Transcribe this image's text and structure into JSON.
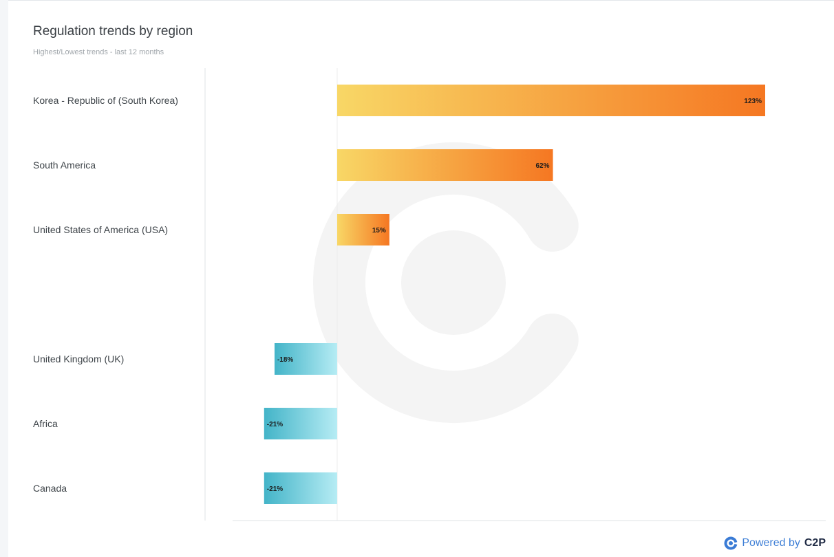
{
  "header": {
    "title": "Regulation trends by region",
    "subtitle": "Highest/Lowest trends - last 12 months"
  },
  "footer": {
    "powered_label": "Powered by",
    "brand": "C2P",
    "brand_icon": "c2p-logo-icon"
  },
  "colors": {
    "positive_start": "#f8d766",
    "positive_end": "#f57722",
    "negative_start": "#b6ecf4",
    "negative_end": "#43b4c8",
    "watermark": "#f4f4f4"
  },
  "chart_data": {
    "type": "bar",
    "orientation": "horizontal",
    "title": "Regulation trends by region",
    "subtitle": "Highest/Lowest trends - last 12 months",
    "categories": [
      "Korea - Republic of (South Korea)",
      "South America",
      "United States of America (USA)",
      "",
      "United Kingdom (UK)",
      "Africa",
      "Canada"
    ],
    "values": [
      123,
      62,
      15,
      null,
      -18,
      -21,
      -21
    ],
    "value_labels": [
      "123%",
      "62%",
      "15%",
      "",
      "-18%",
      "-21%",
      "-21%"
    ],
    "unit": "%",
    "grid": false,
    "legend": "none"
  }
}
